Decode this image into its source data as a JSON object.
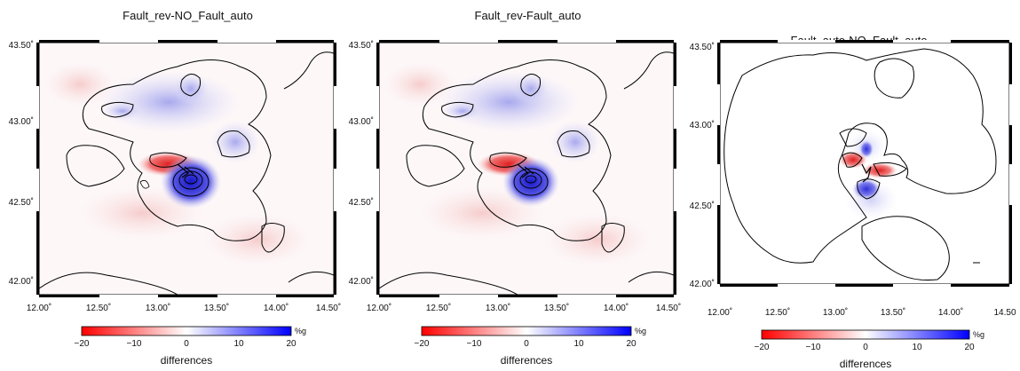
{
  "panels": [
    {
      "title": "Fault_rev-NO_Fault_auto",
      "y_ticks": [
        "43.50˚",
        "43.00˚",
        "42.50˚",
        "42.00˚"
      ],
      "x_ticks": [
        "12.00˚",
        "12.50˚",
        "13.00˚",
        "13.50˚",
        "14.00˚",
        "14.50˚"
      ],
      "colorbar": {
        "ticks": [
          "−20",
          "−10",
          "0",
          "10",
          "20"
        ],
        "unit": "%g",
        "label": "differences"
      }
    },
    {
      "title": "Fault_rev-Fault_auto",
      "y_ticks": [
        "43.50˚",
        "43.00˚",
        "42.50˚",
        "42.00˚"
      ],
      "x_ticks": [
        "12.00˚",
        "12.50˚",
        "13.00˚",
        "13.50˚",
        "14.00˚",
        "14.50˚"
      ],
      "colorbar": {
        "ticks": [
          "−20",
          "−10",
          "0",
          "10",
          "20"
        ],
        "unit": "%g",
        "label": "differences"
      }
    },
    {
      "title": "Fault_auto-NO_Fault_auto",
      "y_ticks": [
        "43.50˚",
        "43.00˚",
        "42.50˚",
        "42.00˚"
      ],
      "x_ticks": [
        "12.00˚",
        "12.50˚",
        "13.00˚",
        "13.50˚",
        "14.00˚",
        "14.50"
      ],
      "colorbar": {
        "ticks": [
          "−20",
          "−10",
          "0",
          "10",
          "20"
        ],
        "unit": "%g",
        "label": "differences"
      }
    }
  ],
  "colors": {
    "negative": "#ff0000",
    "zero": "#ffffff",
    "positive": "#0000ff",
    "contour": "#000000"
  }
}
